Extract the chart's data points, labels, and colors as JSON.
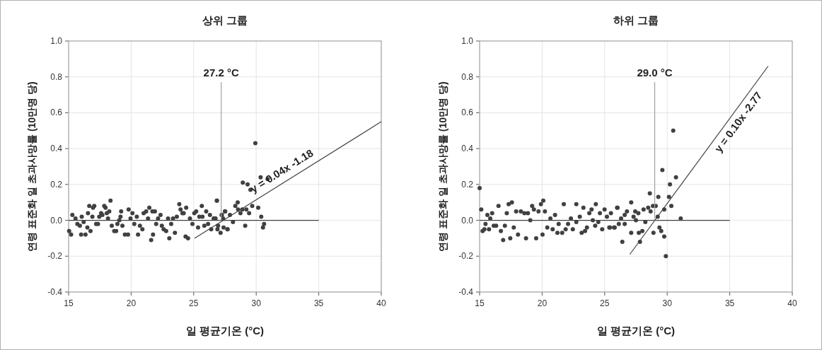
{
  "chart_data": [
    {
      "type": "scatter",
      "title": "상위 그룹",
      "xlabel": "일 평균기온 (°C)",
      "ylabel": "연령 표준화 일 초과사망률 (10만명 당)",
      "xlim": [
        15,
        40
      ],
      "xticks": [
        15,
        20,
        25,
        30,
        35,
        40
      ],
      "ylim": [
        -0.4,
        1.0
      ],
      "yticks": [
        {
          "value": -0.4,
          "label": "-0.4"
        },
        {
          "value": -0.2,
          "label": "-0.2"
        },
        {
          "value": 0,
          "label": "0.0"
        },
        {
          "value": 0.2,
          "label": "0.2"
        },
        {
          "value": 0.4,
          "label": "0.4"
        },
        {
          "value": 0.6,
          "label": "0.6"
        },
        {
          "value": 0.8,
          "label": "0.8"
        },
        {
          "value": 1.0,
          "label": "1.0"
        }
      ],
      "grid": true,
      "series": [
        {
          "type": "scatter",
          "marker": "circle",
          "color": "#404040",
          "x": [
            15.04,
            15.2,
            15.3,
            15.55,
            15.7,
            15.9,
            16.0,
            16.05,
            16.2,
            16.35,
            16.5,
            16.55,
            16.65,
            16.75,
            16.9,
            16.95,
            17.05,
            17.2,
            17.35,
            17.45,
            17.6,
            17.7,
            17.85,
            17.95,
            18.05,
            18.15,
            18.25,
            18.35,
            18.45,
            18.65,
            18.8,
            18.9,
            19.05,
            19.15,
            19.2,
            19.3,
            19.5,
            19.75,
            19.8,
            19.95,
            20.1,
            20.25,
            20.45,
            20.55,
            20.7,
            20.9,
            21.0,
            21.2,
            21.35,
            21.45,
            21.6,
            21.7,
            21.75,
            21.9,
            22.0,
            22.15,
            22.35,
            22.45,
            22.6,
            22.8,
            22.95,
            23.05,
            23.2,
            23.35,
            23.5,
            23.65,
            23.85,
            23.95,
            24.1,
            24.2,
            24.4,
            24.35,
            24.55,
            24.7,
            24.9,
            25.05,
            25.2,
            25.35,
            25.45,
            25.65,
            25.7,
            25.85,
            26.0,
            26.15,
            26.3,
            26.4,
            26.6,
            26.75,
            26.85,
            26.95,
            27.15,
            27.25,
            27.35,
            27.5,
            27.7,
            29.93,
            26.86,
            28.93,
            29.31,
            29.54,
            30.35,
            30.91,
            28.52,
            28.33,
            27.52,
            27.24,
            27.9,
            28.74,
            29.21,
            29.43,
            29.68,
            30.16,
            30.4,
            30.63,
            30.54,
            29.12,
            28.14,
            27.71,
            27.39,
            26.9,
            26.68,
            28.55,
            28.89
          ],
          "values": [
            -0.06,
            -0.08,
            0.03,
            0.01,
            -0.02,
            -0.03,
            -0.08,
            0.02,
            -0.01,
            -0.08,
            -0.04,
            0.04,
            0.08,
            -0.06,
            0.02,
            0.07,
            0.08,
            -0.02,
            -0.02,
            0.02,
            0.04,
            0.03,
            0.08,
            0.07,
            0.04,
            0.01,
            0.05,
            0.11,
            -0.03,
            -0.06,
            -0.06,
            -0.02,
            0.0,
            0.02,
            0.05,
            -0.03,
            -0.08,
            -0.08,
            0.06,
            0.01,
            0.04,
            -0.02,
            0.02,
            -0.08,
            -0.03,
            -0.05,
            0.04,
            0.05,
            0.01,
            0.07,
            -0.11,
            0.05,
            -0.08,
            0.05,
            -0.02,
            0.01,
            0.03,
            -0.03,
            -0.05,
            -0.06,
            0.01,
            -0.1,
            -0.02,
            0.01,
            -0.07,
            0.02,
            0.09,
            0.06,
            0.04,
            0.04,
            0.07,
            -0.09,
            -0.1,
            0.01,
            -0.02,
            0.04,
            0.05,
            -0.04,
            0.02,
            0.08,
            0.02,
            -0.03,
            0.05,
            -0.02,
            0.03,
            -0.05,
            0.01,
            0.01,
            0.11,
            -0.03,
            -0.07,
            0.03,
            0.01,
            0.05,
            -0.05,
            0.43,
            0.11,
            0.21,
            0.2,
            0.17,
            0.24,
            0.23,
            0.1,
            0.08,
            0.05,
            0.03,
            0.03,
            0.04,
            0.06,
            0.04,
            0.08,
            0.07,
            0.02,
            -0.02,
            -0.04,
            -0.03,
            -0.01,
            -0.05,
            -0.04,
            -0.05,
            0.01,
            0.06,
            0.06
          ]
        },
        {
          "type": "line",
          "color": "#404040",
          "x": [
            15,
            35
          ],
          "values": [
            0,
            0
          ]
        },
        {
          "type": "line",
          "color": "#404040",
          "x": [
            25.07,
            40
          ],
          "values": [
            -0.1,
            0.55
          ]
        },
        {
          "type": "line",
          "color": "#a0a0a0",
          "x": [
            27.2,
            27.2
          ],
          "values": [
            0,
            0.77
          ]
        }
      ],
      "annotations": [
        {
          "text": "27.2 °C",
          "x": 27.2,
          "y": 0.77
        },
        {
          "text": "y = 0.04x -1.18",
          "x": 32.5,
          "y": 0.225
        }
      ]
    },
    {
      "type": "scatter",
      "title": "하위 그룹",
      "xlabel": "일 평균기온 (°C)",
      "ylabel": "연령 표준화 일 초과사망률 (10만명 당)",
      "xlim": [
        15,
        40
      ],
      "xticks": [
        15,
        20,
        25,
        30,
        35,
        40
      ],
      "ylim": [
        -0.4,
        1.0
      ],
      "yticks": [
        {
          "value": -0.4,
          "label": "-0.4"
        },
        {
          "value": -0.2,
          "label": "-0.2"
        },
        {
          "value": 0,
          "label": "0.0"
        },
        {
          "value": 0.2,
          "label": "0.2"
        },
        {
          "value": 0.4,
          "label": "0.4"
        },
        {
          "value": 0.6,
          "label": "0.6"
        },
        {
          "value": 0.8,
          "label": "0.8"
        },
        {
          "value": 1.0,
          "label": "1.0"
        }
      ],
      "grid": true,
      "series": [
        {
          "type": "scatter",
          "marker": "circle",
          "color": "#404040",
          "x": [
            15.0,
            15.13,
            15.24,
            15.38,
            15.47,
            15.62,
            15.75,
            15.85,
            16.0,
            16.13,
            16.32,
            16.51,
            16.7,
            16.88,
            17.02,
            17.17,
            17.32,
            17.45,
            17.58,
            17.73,
            17.92,
            18.07,
            18.3,
            18.58,
            18.71,
            18.86,
            19.05,
            19.2,
            19.34,
            19.52,
            19.71,
            19.9,
            20.09,
            20.22,
            20.03,
            20.41,
            20.66,
            20.84,
            21.03,
            21.32,
            21.22,
            21.6,
            21.73,
            21.88,
            22.07,
            22.3,
            22.45,
            22.73,
            22.73,
            23.01,
            23.16,
            23.3,
            23.43,
            23.58,
            23.77,
            23.95,
            24.05,
            24.29,
            24.24,
            24.49,
            24.62,
            24.8,
            24.99,
            25.18,
            25.37,
            25.5,
            25.75,
            25.99,
            30.48,
            29.61,
            30.7,
            30.22,
            28.61,
            29.29,
            30.14,
            27.12,
            28.86,
            29.08,
            30.33,
            29.76,
            28.48,
            28.11,
            27.44,
            26.78,
            26.03,
            28.67,
            27.69,
            27.31,
            26.6,
            26.31,
            29.24,
            31.08,
            27.5,
            28.25,
            26.6,
            26.13,
            25.8,
            25.42,
            29.38,
            29.52,
            28.9,
            29.76,
            27.12,
            27.73,
            28.01,
            26.41,
            27.82,
            29.89
          ],
          "values": [
            0.18,
            0.06,
            -0.06,
            -0.05,
            -0.02,
            0.03,
            -0.05,
            0.01,
            0.04,
            -0.03,
            -0.03,
            0.08,
            -0.06,
            -0.11,
            -0.03,
            0.04,
            0.09,
            -0.1,
            0.1,
            -0.04,
            0.05,
            -0.08,
            0.05,
            0.04,
            -0.1,
            0.04,
            0.0,
            0.08,
            0.06,
            -0.1,
            0.05,
            0.09,
            0.11,
            0.05,
            -0.08,
            -0.04,
            0.01,
            -0.05,
            0.03,
            -0.02,
            -0.07,
            -0.07,
            0.09,
            -0.05,
            -0.02,
            0.01,
            -0.05,
            0.09,
            -0.01,
            0.02,
            -0.07,
            0.07,
            -0.06,
            -0.04,
            0.04,
            0.06,
            0.0,
            0.09,
            -0.03,
            -0.01,
            0.04,
            -0.05,
            0.06,
            0.02,
            -0.04,
            0.04,
            -0.04,
            0.07,
            0.5,
            0.28,
            0.24,
            0.2,
            0.15,
            0.13,
            0.13,
            0.1,
            0.08,
            0.08,
            0.08,
            0.06,
            0.07,
            0.06,
            0.05,
            0.05,
            0.07,
            0.05,
            0.04,
            0.02,
            0.03,
            0.01,
            0.02,
            0.01,
            0.0,
            -0.01,
            -0.02,
            -0.02,
            -0.04,
            -0.04,
            -0.04,
            -0.06,
            -0.07,
            -0.09,
            -0.07,
            -0.07,
            -0.06,
            -0.12,
            -0.12,
            -0.2
          ]
        },
        {
          "type": "line",
          "color": "#404040",
          "x": [
            15,
            35
          ],
          "values": [
            0,
            0
          ]
        },
        {
          "type": "line",
          "color": "#404040",
          "x": [
            27.01,
            38.07
          ],
          "values": [
            -0.19,
            0.86
          ]
        },
        {
          "type": "line",
          "color": "#a0a0a0",
          "x": [
            29.0,
            29.0
          ],
          "values": [
            0,
            0.77
          ]
        }
      ],
      "annotations": [
        {
          "text": "29.0 °C",
          "x": 29.0,
          "y": 0.77
        },
        {
          "text": "y = 0.10x -2.77",
          "x": 35.1,
          "y": 0.578
        }
      ]
    }
  ]
}
